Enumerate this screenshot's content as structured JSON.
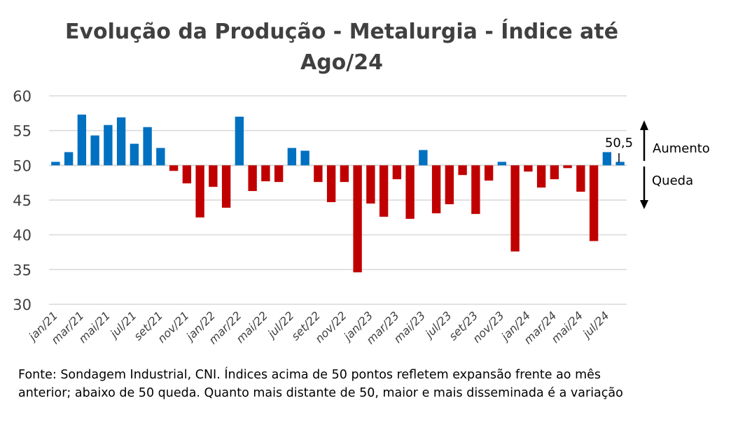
{
  "chart_data": {
    "type": "bar",
    "title": "Evolução da Produção - Metalurgia - Índice até Ago/24",
    "title_lines": [
      "Evolução da Produção - Metalurgia - Índice até",
      "Ago/24"
    ],
    "xlabel": "",
    "ylabel": "",
    "ylim": [
      30,
      60
    ],
    "yticks": [
      30,
      35,
      40,
      45,
      50,
      55,
      60
    ],
    "baseline": 50,
    "grid": true,
    "categories": [
      "jan/21",
      "fev/21",
      "mar/21",
      "abr/21",
      "mai/21",
      "jun/21",
      "jul/21",
      "ago/21",
      "set/21",
      "out/21",
      "nov/21",
      "dez/21",
      "jan/22",
      "fev/22",
      "mar/22",
      "abr/22",
      "mai/22",
      "jun/22",
      "jul/22",
      "ago/22",
      "set/22",
      "out/22",
      "nov/22",
      "dez/22",
      "jan/23",
      "fev/23",
      "mar/23",
      "abr/23",
      "mai/23",
      "jun/23",
      "jul/23",
      "ago/23",
      "set/23",
      "out/23",
      "nov/23",
      "dez/23",
      "jan/24",
      "fev/24",
      "mar/24",
      "abr/24",
      "mai/24",
      "jun/24",
      "jul/24",
      "ago/24"
    ],
    "xtick_labels": [
      "jan/21",
      "mar/21",
      "mai/21",
      "jul/21",
      "set/21",
      "nov/21",
      "jan/22",
      "mar/22",
      "mai/22",
      "jul/22",
      "set/22",
      "nov/22",
      "jan/23",
      "mar/23",
      "mai/23",
      "jul/23",
      "set/23",
      "nov/23",
      "jan/24",
      "mar/24",
      "mai/24",
      "jul/24"
    ],
    "values": [
      50.5,
      51.9,
      57.3,
      54.3,
      55.8,
      56.9,
      53.1,
      55.5,
      52.5,
      49.2,
      47.4,
      42.5,
      46.9,
      43.9,
      57.0,
      46.3,
      47.7,
      47.6,
      52.5,
      52.1,
      47.6,
      44.7,
      47.6,
      34.6,
      44.5,
      42.6,
      48.0,
      42.3,
      52.2,
      43.1,
      44.4,
      48.6,
      43.0,
      47.8,
      50.5,
      37.6,
      49.1,
      46.8,
      48.0,
      49.6,
      46.2,
      39.1,
      51.9,
      50.5
    ],
    "colors": {
      "above": "#0070C0",
      "below": "#C00000",
      "grid": "#D9D9D9"
    },
    "data_label": "50,5",
    "annotations": {
      "up": "Aumento",
      "down": "Queda"
    }
  },
  "footnote": "Fonte: Sondagem Industrial, CNI. Índices acima de 50 pontos refletem expansão frente ao mês anterior; abaixo de 50 queda. Quanto mais distante de 50, maior e mais disseminada é a variação"
}
